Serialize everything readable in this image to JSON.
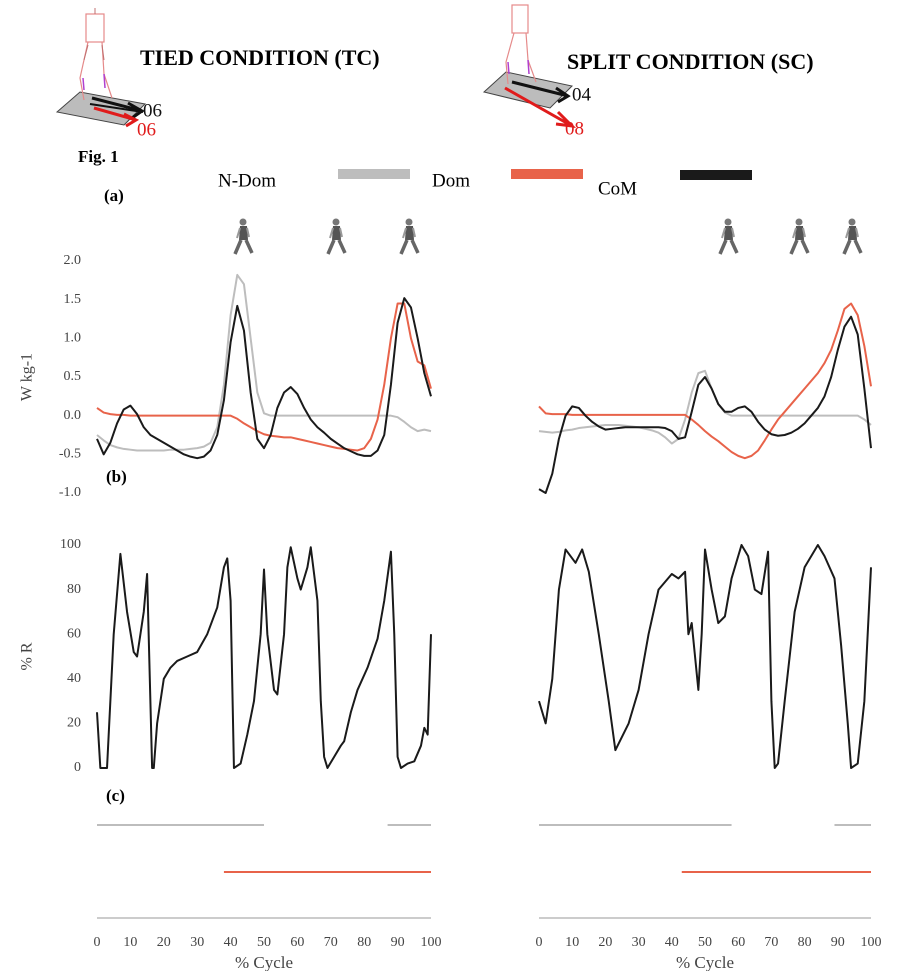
{
  "figure_label": "Fig. 1",
  "panel_labels": [
    "(a)",
    "(b)",
    "(c)"
  ],
  "conditions": [
    {
      "title": "TIED CONDITION (TC)",
      "speeds": [
        {
          "text": "06",
          "color": "#111111"
        },
        {
          "text": "06",
          "color": "#e01b1b"
        }
      ]
    },
    {
      "title": "SPLIT CONDITION (SC)",
      "speeds": [
        {
          "text": "04",
          "color": "#111111"
        },
        {
          "text": "08",
          "color": "#e01b1b"
        }
      ]
    }
  ],
  "chart_data": [
    {
      "type": "line",
      "xlim": [
        0,
        100
      ],
      "ylim": [
        -1,
        2
      ],
      "yticks": [
        {
          "value": 2,
          "label": "2.0"
        },
        1.5,
        {
          "value": 1,
          "label": "1.0"
        },
        0.5,
        {
          "value": 0,
          "label": "0.0"
        },
        -0.5,
        {
          "value": -1,
          "label": "-1.0"
        }
      ],
      "ylabel": "W kg-1",
      "x": [
        0,
        2,
        4,
        6,
        8,
        10,
        12,
        14,
        16,
        18,
        20,
        22,
        24,
        26,
        28,
        30,
        32,
        34,
        36,
        38,
        40,
        42,
        44,
        46,
        48,
        50,
        52,
        54,
        56,
        58,
        60,
        62,
        64,
        66,
        68,
        70,
        72,
        74,
        76,
        78,
        80,
        82,
        84,
        86,
        88,
        90,
        92,
        94,
        96,
        98,
        100
      ],
      "series": [
        {
          "name": "N-Dom",
          "color": "#bdbdbd",
          "values": [
            -0.25,
            -0.32,
            -0.38,
            -0.41,
            -0.43,
            -0.44,
            -0.45,
            -0.45,
            -0.45,
            -0.45,
            -0.45,
            -0.44,
            -0.44,
            -0.44,
            -0.43,
            -0.42,
            -0.4,
            -0.35,
            -0.15,
            0.4,
            1.3,
            1.82,
            1.7,
            1.0,
            0.3,
            0.03,
            0,
            0,
            0,
            0,
            0,
            0,
            0,
            0,
            0,
            0,
            0,
            0,
            0,
            0,
            0,
            0,
            0,
            0,
            0,
            -0.02,
            -0.08,
            -0.15,
            -0.2,
            -0.18,
            -0.2
          ]
        },
        {
          "name": "Dom",
          "color": "#e8634a",
          "values": [
            0.1,
            0.04,
            0.02,
            0.01,
            0.01,
            0,
            0,
            0,
            0,
            0,
            0,
            0,
            0,
            0,
            0,
            0,
            0,
            0,
            0,
            0,
            0,
            -0.04,
            -0.1,
            -0.15,
            -0.2,
            -0.24,
            -0.26,
            -0.27,
            -0.28,
            -0.28,
            -0.3,
            -0.32,
            -0.34,
            -0.36,
            -0.38,
            -0.4,
            -0.42,
            -0.43,
            -0.44,
            -0.45,
            -0.42,
            -0.3,
            -0.05,
            0.4,
            1.0,
            1.45,
            1.45,
            1.0,
            0.7,
            0.65,
            0.35
          ]
        },
        {
          "name": "CoM",
          "color": "#1a1a1a",
          "values": [
            -0.3,
            -0.5,
            -0.35,
            -0.1,
            0.08,
            0.13,
            0.02,
            -0.15,
            -0.25,
            -0.3,
            -0.35,
            -0.4,
            -0.45,
            -0.5,
            -0.53,
            -0.55,
            -0.53,
            -0.45,
            -0.25,
            0.2,
            0.95,
            1.42,
            1.1,
            0.3,
            -0.3,
            -0.42,
            -0.25,
            0.1,
            0.3,
            0.37,
            0.28,
            0.1,
            -0.05,
            -0.15,
            -0.22,
            -0.3,
            -0.36,
            -0.42,
            -0.46,
            -0.5,
            -0.52,
            -0.52,
            -0.45,
            -0.25,
            0.4,
            1.2,
            1.52,
            1.4,
            1.0,
            0.55,
            0.25
          ]
        }
      ]
    },
    {
      "type": "line",
      "xlim": [
        0,
        100
      ],
      "ylim": [
        -1,
        2
      ],
      "x": [
        0,
        2,
        4,
        6,
        8,
        10,
        12,
        14,
        16,
        18,
        20,
        22,
        24,
        26,
        28,
        30,
        32,
        34,
        36,
        38,
        40,
        42,
        44,
        46,
        48,
        50,
        52,
        54,
        56,
        58,
        60,
        62,
        64,
        66,
        68,
        70,
        72,
        74,
        76,
        78,
        80,
        82,
        84,
        86,
        88,
        90,
        92,
        94,
        96,
        98,
        100
      ],
      "series": [
        {
          "color": "#bdbdbd",
          "values": [
            -0.2,
            -0.21,
            -0.22,
            -0.21,
            -0.19,
            -0.18,
            -0.16,
            -0.15,
            -0.14,
            -0.13,
            -0.12,
            -0.12,
            -0.12,
            -0.13,
            -0.14,
            -0.15,
            -0.17,
            -0.19,
            -0.22,
            -0.28,
            -0.36,
            -0.3,
            -0.05,
            0.3,
            0.55,
            0.58,
            0.35,
            0.15,
            0.04,
            0,
            0,
            0,
            0,
            0,
            0,
            0,
            0,
            0,
            0,
            0,
            0,
            0,
            0,
            0,
            0,
            0,
            0,
            0,
            0,
            -0.05,
            -0.12
          ]
        },
        {
          "color": "#e8634a",
          "values": [
            0.12,
            0.03,
            0.02,
            0.02,
            0.02,
            0.01,
            0.01,
            0.01,
            0.01,
            0.01,
            0.01,
            0.01,
            0.01,
            0.01,
            0.01,
            0.01,
            0.01,
            0.01,
            0.01,
            0.01,
            0.01,
            0.01,
            0.01,
            -0.05,
            -0.12,
            -0.2,
            -0.27,
            -0.33,
            -0.4,
            -0.47,
            -0.52,
            -0.55,
            -0.52,
            -0.45,
            -0.32,
            -0.18,
            -0.05,
            0.05,
            0.15,
            0.25,
            0.35,
            0.45,
            0.55,
            0.68,
            0.85,
            1.1,
            1.38,
            1.45,
            1.3,
            0.9,
            0.38
          ]
        },
        {
          "color": "#1a1a1a",
          "values": [
            -0.95,
            -1.0,
            -0.75,
            -0.3,
            0.0,
            0.12,
            0.1,
            0.0,
            -0.08,
            -0.14,
            -0.18,
            -0.17,
            -0.16,
            -0.15,
            -0.15,
            -0.15,
            -0.15,
            -0.15,
            -0.15,
            -0.16,
            -0.2,
            -0.3,
            -0.28,
            0.05,
            0.4,
            0.5,
            0.35,
            0.15,
            0.05,
            0.05,
            0.1,
            0.12,
            0.05,
            -0.08,
            -0.18,
            -0.24,
            -0.26,
            -0.25,
            -0.22,
            -0.17,
            -0.1,
            0.0,
            0.1,
            0.25,
            0.5,
            0.85,
            1.15,
            1.28,
            1.05,
            0.35,
            -0.42
          ]
        }
      ]
    },
    {
      "type": "line",
      "xlim": [
        0,
        100
      ],
      "ylim": [
        0,
        100
      ],
      "yticks": [
        0,
        20,
        40,
        60,
        80,
        100
      ],
      "ylabel": "% R",
      "x": [
        0,
        1,
        3,
        5,
        7,
        9,
        11,
        12,
        14,
        15,
        16.5,
        17,
        18,
        20,
        22,
        24,
        27,
        30,
        33,
        36,
        38,
        39,
        40,
        41,
        43,
        45,
        47,
        49,
        50,
        51,
        53,
        54,
        56,
        57,
        58,
        60,
        61,
        63,
        64,
        66,
        67,
        68,
        69,
        71,
        73,
        74,
        76,
        78,
        81,
        84,
        86,
        88,
        89,
        90,
        91,
        93,
        95,
        97,
        98,
        99,
        100
      ],
      "series": [
        {
          "color": "#1a1a1a",
          "values": [
            25,
            0,
            0,
            60,
            96,
            70,
            52,
            50,
            70,
            87,
            0,
            0,
            20,
            40,
            45,
            48,
            50,
            52,
            60,
            72,
            90,
            94,
            75,
            0,
            2,
            15,
            30,
            60,
            89,
            60,
            35,
            33,
            60,
            90,
            99,
            85,
            80,
            90,
            99,
            75,
            30,
            5,
            0,
            5,
            10,
            12,
            25,
            35,
            45,
            58,
            75,
            97,
            60,
            5,
            0,
            2,
            3,
            10,
            18,
            15,
            60
          ]
        }
      ]
    },
    {
      "type": "line",
      "xlim": [
        0,
        100
      ],
      "ylim": [
        0,
        100
      ],
      "x": [
        0,
        2,
        4,
        6,
        8,
        11,
        13,
        15,
        18,
        21,
        23,
        27,
        30,
        33,
        36,
        40,
        42,
        44,
        45,
        46,
        48,
        49,
        50,
        52,
        54,
        56,
        58,
        61,
        63,
        65,
        67,
        69,
        70,
        71,
        72,
        74,
        77,
        80,
        84,
        86,
        89,
        91,
        93,
        94,
        96,
        98,
        100
      ],
      "series": [
        {
          "color": "#1a1a1a",
          "values": [
            30,
            20,
            40,
            80,
            98,
            92,
            98,
            88,
            60,
            30,
            8,
            20,
            35,
            60,
            80,
            87,
            85,
            88,
            60,
            65,
            35,
            60,
            98,
            80,
            65,
            68,
            85,
            100,
            95,
            80,
            78,
            97,
            30,
            0,
            2,
            30,
            70,
            90,
            100,
            95,
            85,
            55,
            20,
            0,
            2,
            30,
            90
          ]
        }
      ]
    },
    {
      "type": "timeline",
      "xlim": [
        0,
        100
      ],
      "xticks": [
        0,
        10,
        20,
        30,
        40,
        50,
        60,
        70,
        80,
        90,
        100
      ],
      "xlabel": "% Cycle",
      "series": [
        {
          "color": "#bdbdbd",
          "values": [
            [
              0,
              50
            ],
            [
              87,
              100
            ]
          ]
        },
        {
          "color": "#e8634a",
          "values": [
            [
              38,
              100
            ]
          ]
        }
      ]
    },
    {
      "type": "timeline",
      "xlim": [
        0,
        100
      ],
      "xticks": [
        0,
        10,
        20,
        30,
        40,
        50,
        60,
        70,
        80,
        90,
        100
      ],
      "xlabel": "% Cycle",
      "series": [
        {
          "color": "#bdbdbd",
          "values": [
            [
              0,
              58
            ],
            [
              89,
              100
            ]
          ]
        },
        {
          "color": "#e8634a",
          "values": [
            [
              43,
              100
            ]
          ]
        }
      ]
    }
  ]
}
